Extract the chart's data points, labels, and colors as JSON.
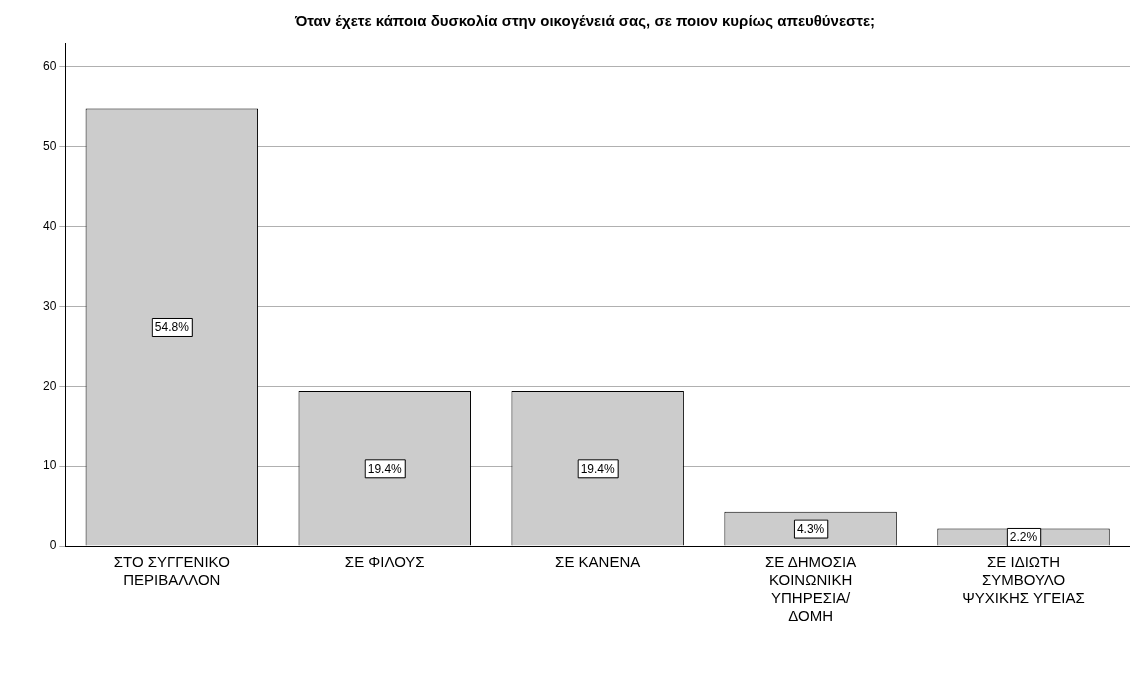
{
  "chart_data": {
    "type": "bar",
    "title": "Όταν έχετε κάποια δυσκολία στην οικογένειά σας, σε ποιον κυρίως απευθύνεστε;",
    "categories": [
      "ΣΤΟ ΣΥΓΓΕΝΙΚΟ ΠΕΡΙΒΑΛΛΟΝ",
      "ΣΕ ΦΙΛΟΥΣ",
      "ΣΕ ΚΑΝΕΝΑ",
      "ΣΕ ΔΗΜΟΣΙΑ ΚΟΙΝΩΝΙΚΗ ΥΠΗΡΕΣΙΑ/ ΔΟΜΗ",
      "ΣΕ ΙΔΙΩΤΗ ΣΥΜΒΟΥΛΟ ΨΥΧΙΚΗΣ ΥΓΕΙΑΣ"
    ],
    "values": [
      54.8,
      19.4,
      19.4,
      4.3,
      2.2
    ],
    "value_labels": [
      "54.8%",
      "19.4%",
      "19.4%",
      "4.3%",
      "2.2%"
    ],
    "color": "#cccccc",
    "ylim": [
      0,
      63
    ],
    "yticks": [
      0,
      10,
      20,
      30,
      40,
      50,
      60
    ],
    "grid": "y"
  }
}
